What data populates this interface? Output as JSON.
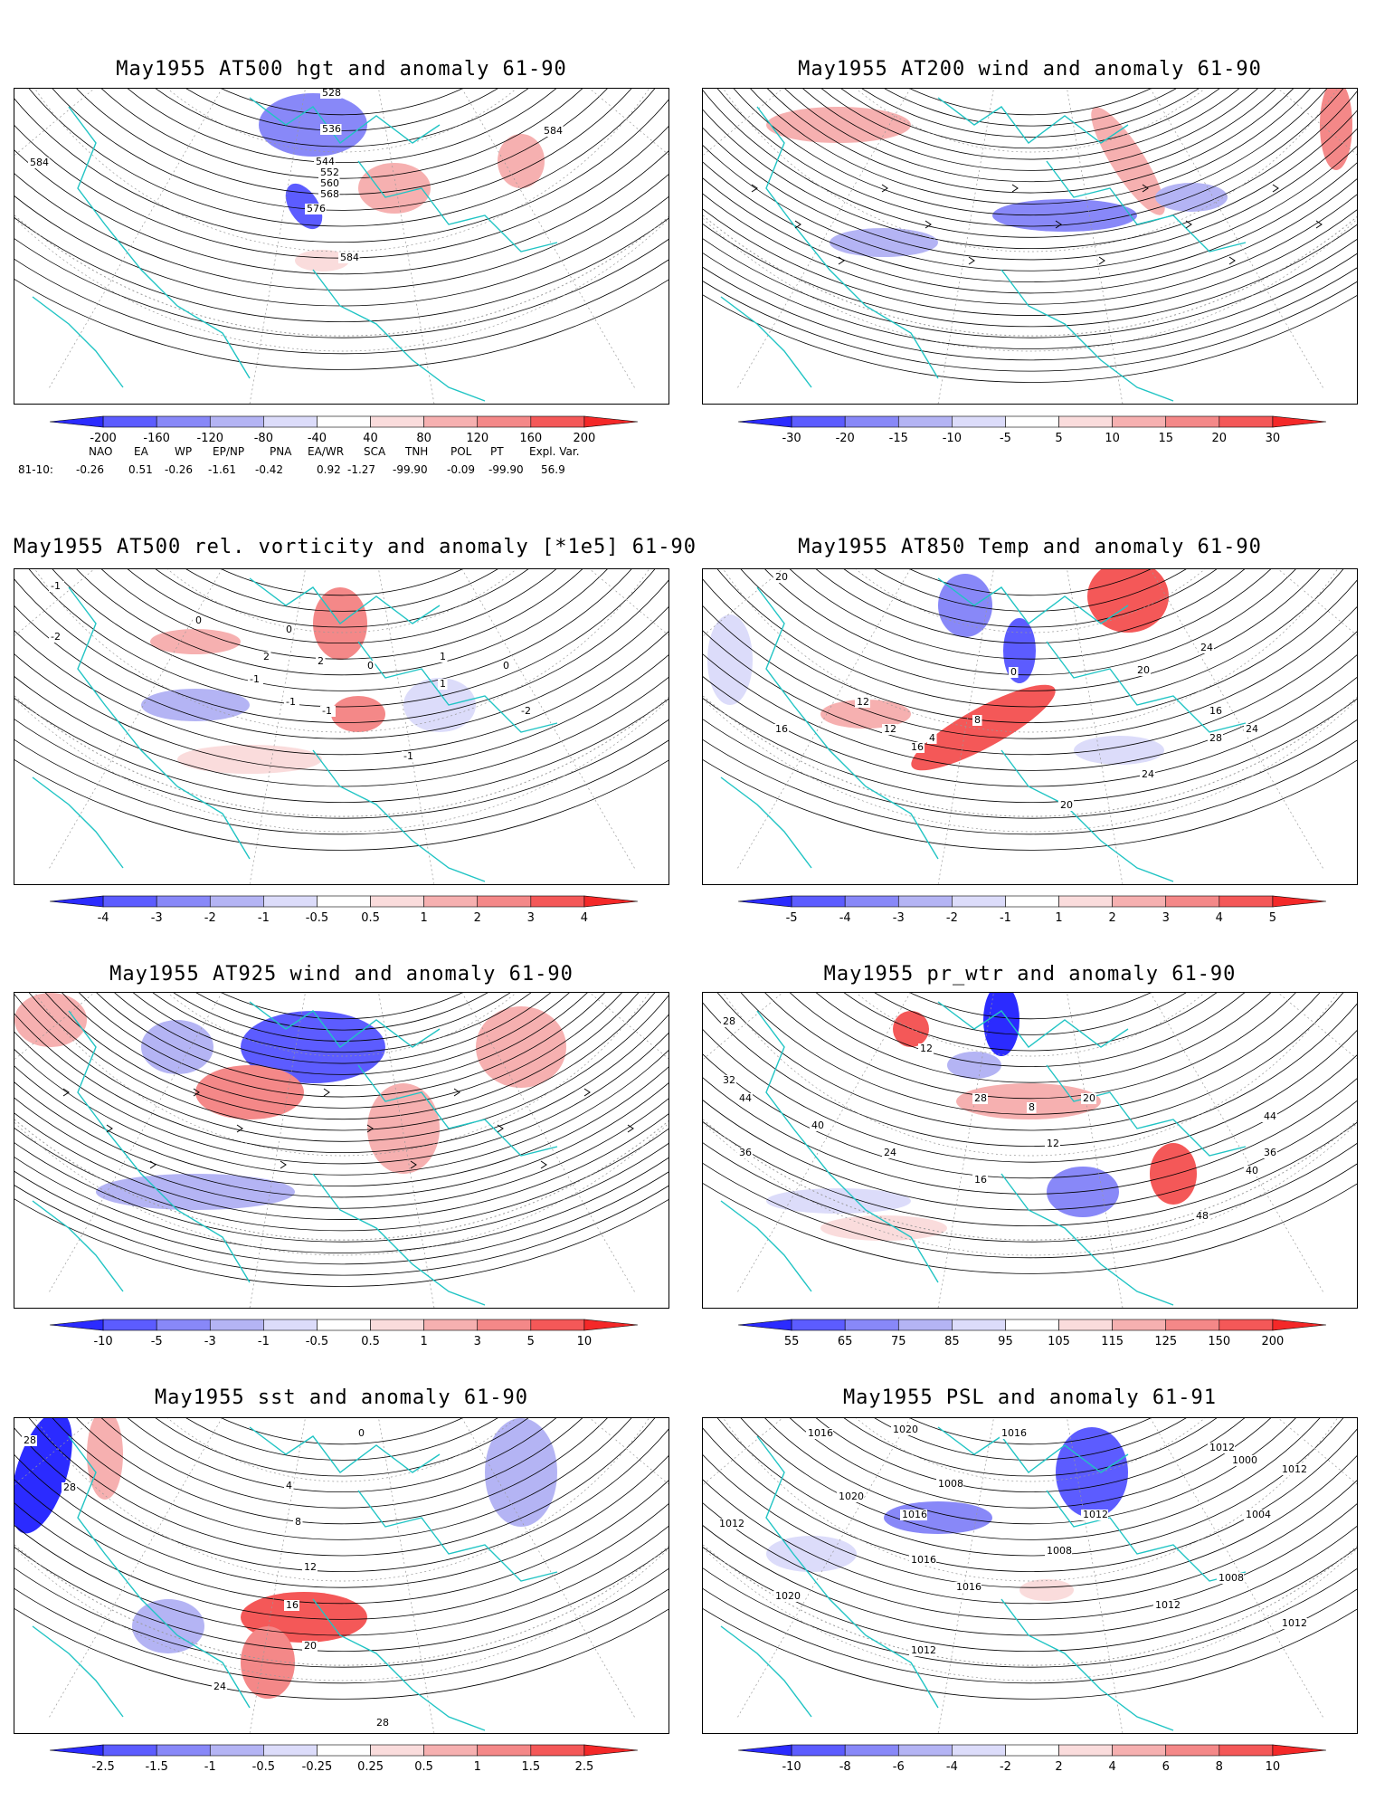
{
  "panels": [
    {
      "id": "p1",
      "title": "May1955 AT500 hgt and anomaly 61-90",
      "colorbar": [
        "-200",
        "-160",
        "-120",
        "-80",
        "-40",
        "40",
        "80",
        "120",
        "160",
        "200"
      ],
      "contour_labels": [
        "528",
        "536",
        "544",
        "552",
        "560",
        "568",
        "576",
        "584",
        "584",
        "584"
      ]
    },
    {
      "id": "p2",
      "title": "May1955 AT200 wind and anomaly 61-90",
      "colorbar": [
        "-30",
        "-20",
        "-15",
        "-10",
        "-5",
        "5",
        "10",
        "15",
        "20",
        "30"
      ],
      "contour_labels": []
    },
    {
      "id": "p3",
      "title": "May1955 AT500 rel. vorticity and anomaly [*1e5] 61-90",
      "colorbar": [
        "-4",
        "-3",
        "-2",
        "-1",
        "-0.5",
        "0.5",
        "1",
        "2",
        "3",
        "4"
      ],
      "contour_labels": [
        "-1",
        "-2",
        "0",
        "0",
        "-1",
        "2",
        "2",
        "-1",
        "0",
        "-1",
        "1",
        "1",
        "0",
        "-2",
        "-1"
      ]
    },
    {
      "id": "p4",
      "title": "May1955 AT850 Temp and anomaly 61-90",
      "colorbar": [
        "-5",
        "-4",
        "-3",
        "-2",
        "-1",
        "1",
        "2",
        "3",
        "4",
        "5"
      ],
      "contour_labels": [
        "20",
        "16",
        "12",
        "8",
        "4",
        "0",
        "12",
        "16",
        "20",
        "24",
        "24",
        "28",
        "16",
        "24",
        "20"
      ]
    },
    {
      "id": "p5",
      "title": "May1955 AT925 wind and anomaly 61-90",
      "colorbar": [
        "-10",
        "-5",
        "-3",
        "-1",
        "-0.5",
        "0.5",
        "1",
        "3",
        "5",
        "10"
      ],
      "contour_labels": []
    },
    {
      "id": "p6",
      "title": "May1955 pr_wtr and anomaly 61-90",
      "colorbar": [
        "55",
        "65",
        "75",
        "85",
        "95",
        "105",
        "115",
        "125",
        "150",
        "200"
      ],
      "contour_labels": [
        "28",
        "32",
        "44",
        "36",
        "40",
        "24",
        "28",
        "12",
        "8",
        "16",
        "20",
        "12",
        "36",
        "40",
        "48",
        "44"
      ]
    },
    {
      "id": "p7",
      "title": "May1955 sst and anomaly 61-90",
      "colorbar": [
        "-2.5",
        "-1.5",
        "-1",
        "-0.5",
        "-0.25",
        "0.25",
        "0.5",
        "1",
        "1.5",
        "2.5"
      ],
      "contour_labels": [
        "28",
        "0",
        "4",
        "8",
        "12",
        "16",
        "20",
        "24",
        "28",
        "28"
      ]
    },
    {
      "id": "p8",
      "title": "May1955 PSL and anomaly 61-91",
      "colorbar": [
        "-10",
        "-8",
        "-6",
        "-4",
        "-2",
        "2",
        "4",
        "6",
        "8",
        "10"
      ],
      "contour_labels": [
        "1012",
        "1016",
        "1020",
        "1016",
        "1008",
        "1012",
        "1012",
        "1020",
        "1016",
        "1016",
        "1020",
        "1016",
        "1012",
        "1008",
        "1012",
        "1008",
        "1000",
        "1004",
        "1012",
        "1012"
      ]
    }
  ],
  "indices": {
    "headers": [
      "NAO",
      "EA",
      "WP",
      "EP/NP",
      "PNA",
      "EA/WR",
      "SCA",
      "TNH",
      "POL",
      "PT",
      "Expl. Var."
    ],
    "row_label": "81-10:",
    "values": [
      "-0.26",
      "0.51",
      "-0.26",
      "-1.61",
      "-0.42",
      "0.92",
      "-1.27",
      "-99.90",
      "-0.09",
      "-99.90",
      "56.9"
    ]
  },
  "colors": {
    "coast": "#20c4c4",
    "contour": "#000000",
    "blue_scale": [
      "#2b2bff",
      "#5c5cff",
      "#8888f8",
      "#b4b4f4",
      "#dcdcfa"
    ],
    "red_scale": [
      "#fadcdc",
      "#f6b0b0",
      "#f48888",
      "#f45858",
      "#f42828"
    ]
  }
}
